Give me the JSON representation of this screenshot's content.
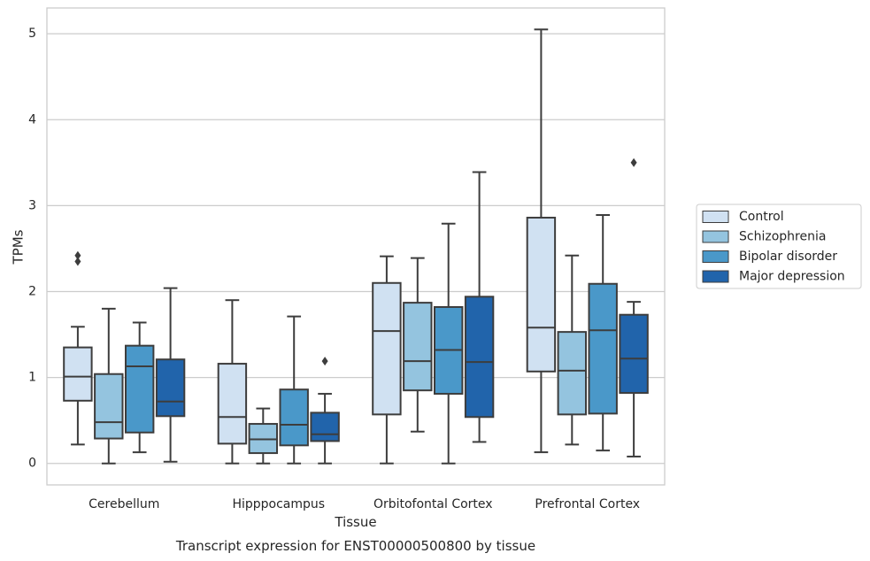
{
  "caption": "Transcript expression for ENST00000500800 by tissue",
  "chart_data": {
    "type": "box",
    "title": "",
    "xlabel": "Tissue",
    "ylabel": "TPMs",
    "ylim": [
      -0.25,
      5.3
    ],
    "yticks": [
      0,
      1,
      2,
      3,
      4,
      5
    ],
    "grid": true,
    "legend_position": "right",
    "categories": [
      "Cerebellum",
      "Hipppocampus",
      "Orbitofontal Cortex",
      "Prefrontal Cortex"
    ],
    "series": [
      {
        "name": "Control",
        "color": "#d0e1f2",
        "boxes": [
          {
            "whislo": 0.22,
            "q1": 0.73,
            "med": 1.01,
            "q3": 1.35,
            "whishi": 1.59,
            "fliers": [
              2.35,
              2.42
            ]
          },
          {
            "whislo": 0.0,
            "q1": 0.23,
            "med": 0.54,
            "q3": 1.16,
            "whishi": 1.9,
            "fliers": []
          },
          {
            "whislo": 0.0,
            "q1": 0.57,
            "med": 1.54,
            "q3": 2.1,
            "whishi": 2.41,
            "fliers": []
          },
          {
            "whislo": 0.13,
            "q1": 1.07,
            "med": 1.58,
            "q3": 2.86,
            "whishi": 5.05,
            "fliers": []
          }
        ]
      },
      {
        "name": "Schizophrenia",
        "color": "#94c4df",
        "boxes": [
          {
            "whislo": 0.0,
            "q1": 0.29,
            "med": 0.48,
            "q3": 1.04,
            "whishi": 1.8,
            "fliers": []
          },
          {
            "whislo": 0.0,
            "q1": 0.12,
            "med": 0.28,
            "q3": 0.46,
            "whishi": 0.64,
            "fliers": []
          },
          {
            "whislo": 0.37,
            "q1": 0.85,
            "med": 1.19,
            "q3": 1.87,
            "whishi": 2.39,
            "fliers": []
          },
          {
            "whislo": 0.22,
            "q1": 0.57,
            "med": 1.08,
            "q3": 1.53,
            "whishi": 2.42,
            "fliers": []
          }
        ]
      },
      {
        "name": "Bipolar disorder",
        "color": "#4a98c9",
        "boxes": [
          {
            "whislo": 0.13,
            "q1": 0.36,
            "med": 1.13,
            "q3": 1.37,
            "whishi": 1.64,
            "fliers": []
          },
          {
            "whislo": 0.0,
            "q1": 0.21,
            "med": 0.45,
            "q3": 0.86,
            "whishi": 1.71,
            "fliers": []
          },
          {
            "whislo": 0.0,
            "q1": 0.81,
            "med": 1.32,
            "q3": 1.82,
            "whishi": 2.79,
            "fliers": []
          },
          {
            "whislo": 0.15,
            "q1": 0.58,
            "med": 1.55,
            "q3": 2.09,
            "whishi": 2.89,
            "fliers": []
          }
        ]
      },
      {
        "name": "Major depression",
        "color": "#2164ab",
        "boxes": [
          {
            "whislo": 0.02,
            "q1": 0.55,
            "med": 0.72,
            "q3": 1.21,
            "whishi": 2.04,
            "fliers": []
          },
          {
            "whislo": 0.0,
            "q1": 0.26,
            "med": 0.34,
            "q3": 0.59,
            "whishi": 0.81,
            "fliers": [
              1.19
            ]
          },
          {
            "whislo": 0.25,
            "q1": 0.54,
            "med": 1.18,
            "q3": 1.94,
            "whishi": 3.39,
            "fliers": []
          },
          {
            "whislo": 0.08,
            "q1": 0.82,
            "med": 1.22,
            "q3": 1.73,
            "whishi": 1.88,
            "fliers": [
              3.5
            ]
          }
        ]
      }
    ]
  }
}
